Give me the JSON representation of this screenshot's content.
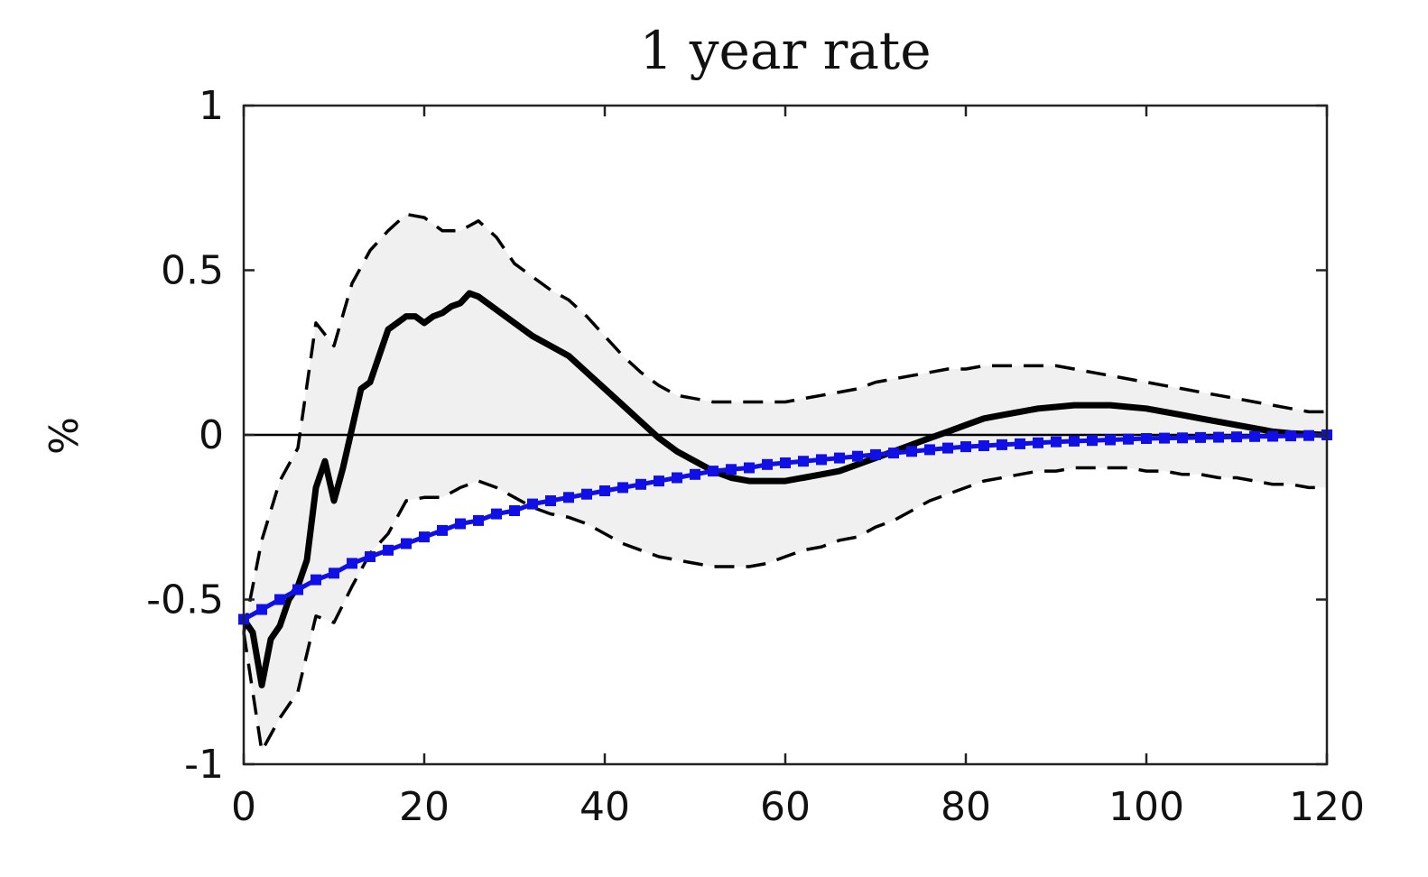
{
  "chart_data": {
    "type": "line",
    "title": "1 year rate",
    "xlabel": "",
    "ylabel": "%",
    "xlim": [
      0,
      120
    ],
    "ylim": [
      -1,
      1
    ],
    "x_ticks": [
      "0",
      "20",
      "40",
      "60",
      "80",
      "100",
      "120"
    ],
    "y_ticks": [
      "1",
      "0.5",
      "0",
      "-0.5",
      "-1"
    ],
    "grid": false,
    "zero_line": true,
    "colors": {
      "band_fill": "#f0f0f0",
      "median": "#000000",
      "bounds": "#000000",
      "model": "#1010e6",
      "zero_line": "#000000",
      "axes": "#222222"
    },
    "series": [
      {
        "role": "confidence-band",
        "style": "shaded",
        "x": [
          0,
          2,
          4,
          6,
          8,
          10,
          12,
          14,
          16,
          18,
          20,
          22,
          24,
          26,
          28,
          30,
          32,
          34,
          36,
          38,
          40,
          42,
          44,
          46,
          48,
          50,
          52,
          54,
          56,
          58,
          60,
          62,
          64,
          66,
          68,
          70,
          72,
          74,
          76,
          78,
          80,
          82,
          84,
          86,
          88,
          90,
          92,
          94,
          96,
          98,
          100,
          102,
          104,
          106,
          108,
          110,
          112,
          114,
          116,
          118,
          120
        ],
        "upper": [
          -0.6,
          -0.32,
          -0.14,
          -0.04,
          0.34,
          0.27,
          0.46,
          0.56,
          0.62,
          0.67,
          0.66,
          0.62,
          0.62,
          0.65,
          0.6,
          0.52,
          0.48,
          0.44,
          0.41,
          0.36,
          0.3,
          0.24,
          0.19,
          0.15,
          0.12,
          0.11,
          0.1,
          0.1,
          0.1,
          0.1,
          0.1,
          0.11,
          0.12,
          0.13,
          0.14,
          0.16,
          0.17,
          0.18,
          0.19,
          0.2,
          0.2,
          0.21,
          0.21,
          0.21,
          0.21,
          0.21,
          0.2,
          0.19,
          0.18,
          0.17,
          0.16,
          0.15,
          0.14,
          0.13,
          0.12,
          0.11,
          0.1,
          0.09,
          0.08,
          0.07,
          0.07
        ],
        "lower": [
          -0.6,
          -0.96,
          -0.86,
          -0.78,
          -0.55,
          -0.57,
          -0.46,
          -0.36,
          -0.3,
          -0.2,
          -0.19,
          -0.19,
          -0.16,
          -0.14,
          -0.16,
          -0.19,
          -0.22,
          -0.24,
          -0.25,
          -0.27,
          -0.3,
          -0.33,
          -0.35,
          -0.37,
          -0.38,
          -0.39,
          -0.4,
          -0.4,
          -0.4,
          -0.39,
          -0.37,
          -0.35,
          -0.34,
          -0.32,
          -0.31,
          -0.28,
          -0.26,
          -0.23,
          -0.2,
          -0.18,
          -0.16,
          -0.14,
          -0.13,
          -0.12,
          -0.11,
          -0.11,
          -0.1,
          -0.1,
          -0.1,
          -0.1,
          -0.11,
          -0.11,
          -0.12,
          -0.12,
          -0.13,
          -0.13,
          -0.14,
          -0.15,
          -0.15,
          -0.16,
          -0.16
        ]
      },
      {
        "role": "upper-bound",
        "style": "dashed",
        "x": [
          0,
          2,
          4,
          6,
          8,
          10,
          12,
          14,
          16,
          18,
          20,
          22,
          24,
          26,
          28,
          30,
          32,
          34,
          36,
          38,
          40,
          42,
          44,
          46,
          48,
          50,
          52,
          54,
          56,
          58,
          60,
          62,
          64,
          66,
          68,
          70,
          72,
          74,
          76,
          78,
          80,
          82,
          84,
          86,
          88,
          90,
          92,
          94,
          96,
          98,
          100,
          102,
          104,
          106,
          108,
          110,
          112,
          114,
          116,
          118,
          120
        ],
        "y": [
          -0.6,
          -0.32,
          -0.14,
          -0.04,
          0.34,
          0.27,
          0.46,
          0.56,
          0.62,
          0.67,
          0.66,
          0.62,
          0.62,
          0.65,
          0.6,
          0.52,
          0.48,
          0.44,
          0.41,
          0.36,
          0.3,
          0.24,
          0.19,
          0.15,
          0.12,
          0.11,
          0.1,
          0.1,
          0.1,
          0.1,
          0.1,
          0.11,
          0.12,
          0.13,
          0.14,
          0.16,
          0.17,
          0.18,
          0.19,
          0.2,
          0.2,
          0.21,
          0.21,
          0.21,
          0.21,
          0.21,
          0.2,
          0.19,
          0.18,
          0.17,
          0.16,
          0.15,
          0.14,
          0.13,
          0.12,
          0.11,
          0.1,
          0.09,
          0.08,
          0.07,
          0.07
        ]
      },
      {
        "role": "lower-bound",
        "style": "dashed",
        "x": [
          0,
          2,
          4,
          6,
          8,
          10,
          12,
          14,
          16,
          18,
          20,
          22,
          24,
          26,
          28,
          30,
          32,
          34,
          36,
          38,
          40,
          42,
          44,
          46,
          48,
          50,
          52,
          54,
          56,
          58,
          60,
          62,
          64,
          66,
          68,
          70,
          72,
          74,
          76,
          78,
          80,
          82,
          84,
          86,
          88,
          90,
          92,
          94,
          96,
          98,
          100,
          102,
          104,
          106,
          108,
          110,
          112,
          114,
          116,
          118,
          120
        ],
        "y": [
          -0.6,
          -0.96,
          -0.86,
          -0.78,
          -0.55,
          -0.57,
          -0.46,
          -0.36,
          -0.3,
          -0.2,
          -0.19,
          -0.19,
          -0.16,
          -0.14,
          -0.16,
          -0.19,
          -0.22,
          -0.24,
          -0.25,
          -0.27,
          -0.3,
          -0.33,
          -0.35,
          -0.37,
          -0.38,
          -0.39,
          -0.4,
          -0.4,
          -0.4,
          -0.39,
          -0.37,
          -0.35,
          -0.34,
          -0.32,
          -0.31,
          -0.28,
          -0.26,
          -0.23,
          -0.2,
          -0.18,
          -0.16,
          -0.14,
          -0.13,
          -0.12,
          -0.11,
          -0.11,
          -0.1,
          -0.1,
          -0.1,
          -0.1,
          -0.11,
          -0.11,
          -0.12,
          -0.12,
          -0.13,
          -0.13,
          -0.14,
          -0.15,
          -0.15,
          -0.16,
          -0.16
        ]
      },
      {
        "role": "median",
        "style": "solid-thick",
        "x": [
          0,
          1,
          2,
          3,
          4,
          5,
          6,
          7,
          8,
          9,
          10,
          11,
          12,
          13,
          14,
          15,
          16,
          17,
          18,
          19,
          20,
          21,
          22,
          23,
          24,
          25,
          26,
          28,
          30,
          32,
          34,
          36,
          38,
          40,
          42,
          44,
          46,
          48,
          50,
          52,
          54,
          56,
          58,
          60,
          62,
          64,
          66,
          68,
          70,
          72,
          74,
          76,
          78,
          80,
          82,
          84,
          86,
          88,
          90,
          92,
          94,
          96,
          98,
          100,
          102,
          104,
          106,
          108,
          110,
          112,
          114,
          116,
          118,
          120
        ],
        "y": [
          -0.56,
          -0.6,
          -0.76,
          -0.62,
          -0.58,
          -0.5,
          -0.46,
          -0.38,
          -0.16,
          -0.08,
          -0.2,
          -0.1,
          0.02,
          0.14,
          0.16,
          0.24,
          0.32,
          0.34,
          0.36,
          0.36,
          0.34,
          0.36,
          0.37,
          0.39,
          0.4,
          0.43,
          0.42,
          0.38,
          0.34,
          0.3,
          0.27,
          0.24,
          0.19,
          0.14,
          0.09,
          0.04,
          -0.01,
          -0.05,
          -0.08,
          -0.11,
          -0.13,
          -0.14,
          -0.14,
          -0.14,
          -0.13,
          -0.12,
          -0.11,
          -0.09,
          -0.07,
          -0.05,
          -0.03,
          -0.01,
          0.01,
          0.03,
          0.05,
          0.06,
          0.07,
          0.08,
          0.085,
          0.09,
          0.09,
          0.09,
          0.085,
          0.08,
          0.07,
          0.06,
          0.05,
          0.04,
          0.03,
          0.02,
          0.01,
          0.005,
          0.002,
          0.0
        ]
      },
      {
        "role": "model",
        "style": "solid-with-square-markers",
        "x": [
          0,
          2,
          4,
          6,
          8,
          10,
          12,
          14,
          16,
          18,
          20,
          22,
          24,
          26,
          28,
          30,
          32,
          34,
          36,
          38,
          40,
          42,
          44,
          46,
          48,
          50,
          52,
          54,
          56,
          58,
          60,
          62,
          64,
          66,
          68,
          70,
          72,
          74,
          76,
          78,
          80,
          82,
          84,
          86,
          88,
          90,
          92,
          94,
          96,
          98,
          100,
          102,
          104,
          106,
          108,
          110,
          112,
          114,
          116,
          118,
          120
        ],
        "y": [
          -0.56,
          -0.53,
          -0.5,
          -0.47,
          -0.44,
          -0.42,
          -0.39,
          -0.37,
          -0.35,
          -0.33,
          -0.31,
          -0.29,
          -0.27,
          -0.26,
          -0.24,
          -0.23,
          -0.21,
          -0.2,
          -0.19,
          -0.18,
          -0.17,
          -0.16,
          -0.15,
          -0.14,
          -0.13,
          -0.12,
          -0.11,
          -0.105,
          -0.1,
          -0.09,
          -0.085,
          -0.08,
          -0.075,
          -0.07,
          -0.065,
          -0.06,
          -0.055,
          -0.05,
          -0.045,
          -0.04,
          -0.036,
          -0.033,
          -0.03,
          -0.027,
          -0.024,
          -0.021,
          -0.019,
          -0.017,
          -0.015,
          -0.013,
          -0.011,
          -0.01,
          -0.009,
          -0.008,
          -0.007,
          -0.006,
          -0.005,
          -0.004,
          -0.003,
          -0.002,
          0.0
        ]
      }
    ]
  }
}
